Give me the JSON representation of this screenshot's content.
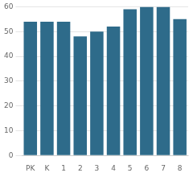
{
  "chart_data": {
    "type": "bar",
    "categories": [
      "PK",
      "K",
      "1",
      "2",
      "3",
      "4",
      "5",
      "6",
      "7",
      "8"
    ],
    "values": [
      54,
      54,
      54,
      48,
      50,
      52,
      59,
      60,
      60,
      55
    ],
    "color": "#2e6b8a",
    "ylim": [
      0,
      60
    ],
    "yticks": [
      0,
      10,
      20,
      30,
      40,
      50,
      60
    ],
    "grid": true
  }
}
